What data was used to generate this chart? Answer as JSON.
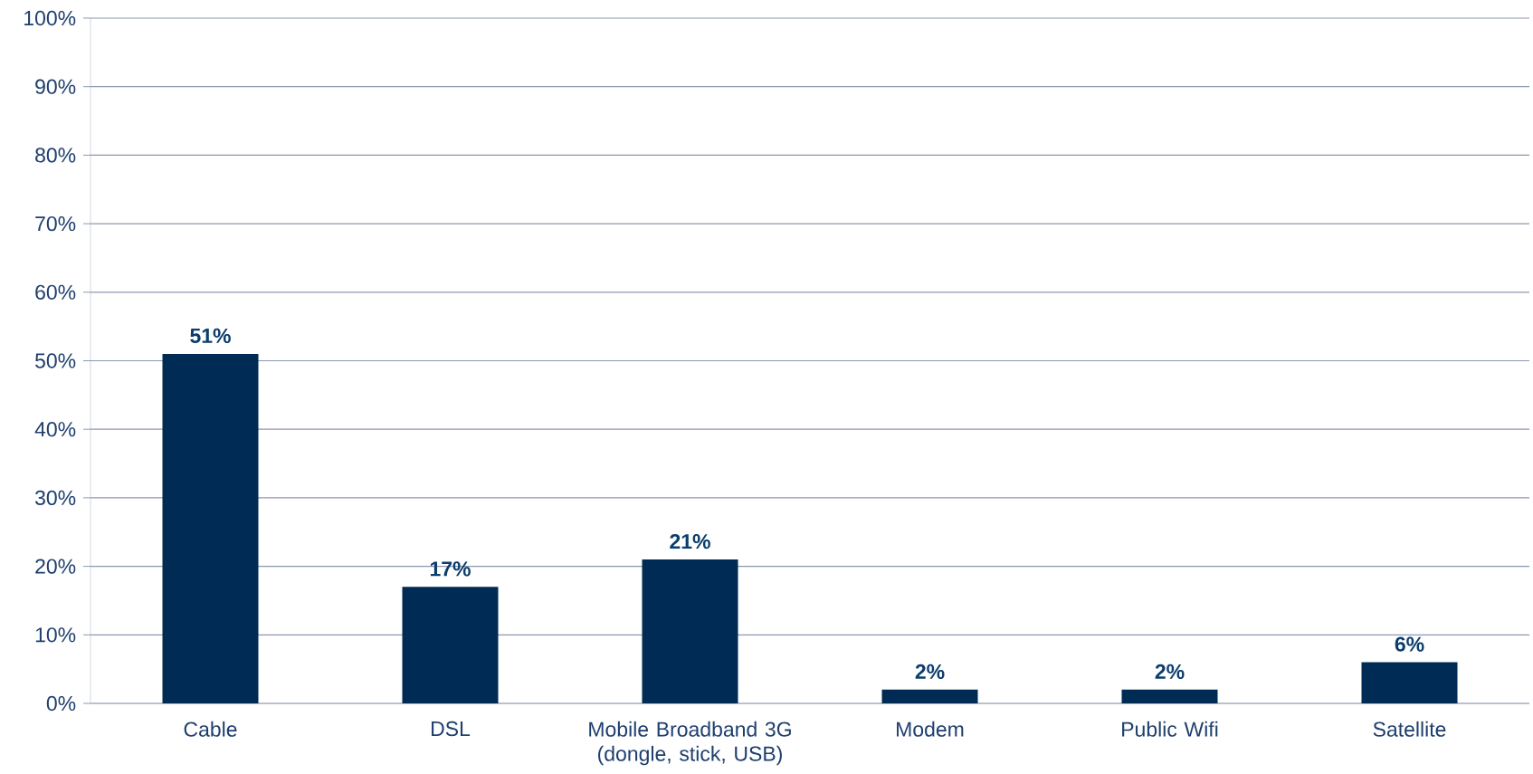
{
  "chart_data": {
    "type": "bar",
    "categories": [
      "Cable",
      "DSL",
      "Mobile Broadband 3G (dongle, stick, USB)",
      "Modem",
      "Public Wifi",
      "Satellite"
    ],
    "values": [
      51,
      17,
      21,
      2,
      2,
      6
    ],
    "value_labels": [
      "51%",
      "17%",
      "21%",
      "2%",
      "2%",
      "6%"
    ],
    "color": "#002b54",
    "ylim": [
      0,
      100
    ],
    "yticks": [
      {
        "value": 0,
        "label": "0%"
      },
      {
        "value": 10,
        "label": "10%"
      },
      {
        "value": 20,
        "label": "20%"
      },
      {
        "value": 30,
        "label": "30%"
      },
      {
        "value": 40,
        "label": "40%"
      },
      {
        "value": 50,
        "label": "50%"
      },
      {
        "value": 60,
        "label": "60%"
      },
      {
        "value": 70,
        "label": "70%"
      },
      {
        "value": 80,
        "label": "80%"
      },
      {
        "value": 90,
        "label": "90%"
      },
      {
        "value": 100,
        "label": "100%"
      }
    ],
    "grid": "y"
  }
}
